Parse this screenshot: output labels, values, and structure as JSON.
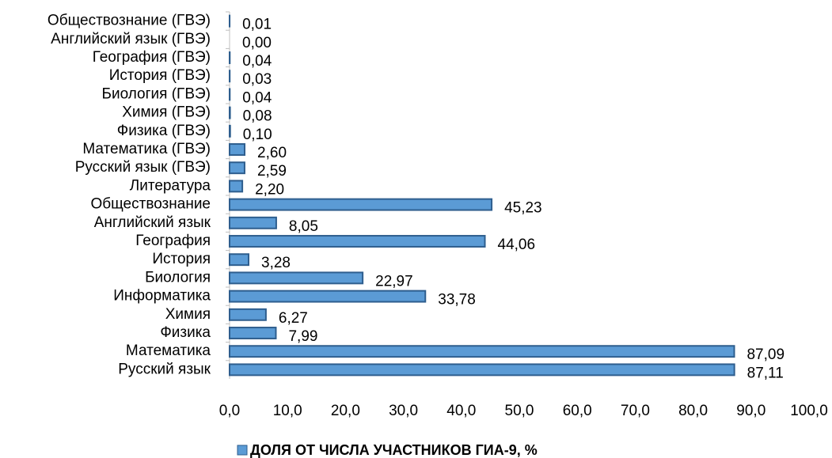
{
  "chart_data": {
    "type": "barh",
    "categories": [
      "Обществознание (ГВЭ)",
      "Английский язык (ГВЭ)",
      "География (ГВЭ)",
      "История (ГВЭ)",
      "Биология (ГВЭ)",
      "Химия (ГВЭ)",
      "Физика (ГВЭ)",
      "Математика (ГВЭ)",
      "Русский язык (ГВЭ)",
      "Литература",
      "Обществознание",
      "Английский язык",
      "География",
      "История",
      "Биология",
      "Информатика",
      "Химия",
      "Физика",
      "Математика",
      "Русский язык"
    ],
    "series": [
      {
        "name": "ДОЛЯ ОТ ЧИСЛА УЧАСТНИКОВ ГИА-9, %",
        "color": "#5b9bd5",
        "values": [
          0.01,
          0.0,
          0.04,
          0.03,
          0.04,
          0.08,
          0.1,
          2.6,
          2.59,
          2.2,
          45.23,
          8.05,
          44.06,
          3.28,
          22.97,
          33.78,
          6.27,
          7.99,
          87.09,
          87.11
        ],
        "value_labels": [
          "0,01",
          "0,00",
          "0,04",
          "0,03",
          "0,04",
          "0,08",
          "0,10",
          "2,60",
          "2,59",
          "2,20",
          "45,23",
          "8,05",
          "44,06",
          "3,28",
          "22,97",
          "33,78",
          "6,27",
          "7,99",
          "87,09",
          "87,11"
        ]
      }
    ],
    "xlim": [
      0,
      100
    ],
    "xticks": [
      {
        "value": 0,
        "label": "0,0"
      },
      {
        "value": 10,
        "label": "10,0"
      },
      {
        "value": 20,
        "label": "20,0"
      },
      {
        "value": 30,
        "label": "30,0"
      },
      {
        "value": 40,
        "label": "40,0"
      },
      {
        "value": 50,
        "label": "50,0"
      },
      {
        "value": 60,
        "label": "60,0"
      },
      {
        "value": 70,
        "label": "70,0"
      },
      {
        "value": 80,
        "label": "80,0"
      },
      {
        "value": 90,
        "label": "90,0"
      },
      {
        "value": 100,
        "label": "100,0"
      }
    ],
    "legend": "bottom"
  }
}
